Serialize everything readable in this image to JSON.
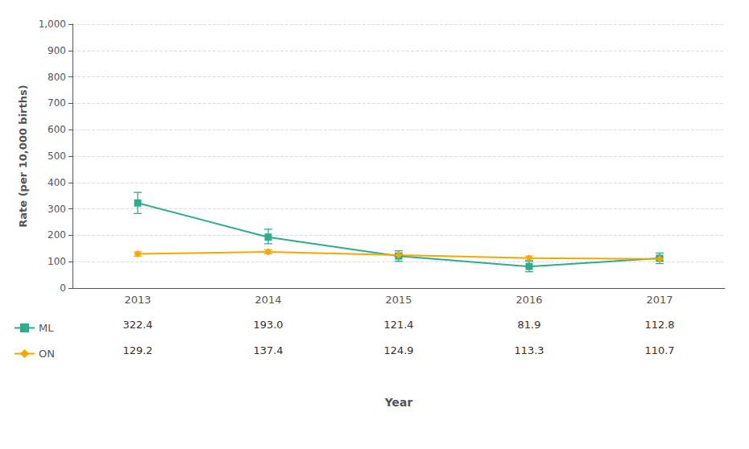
{
  "chart_data": {
    "type": "line",
    "categories": [
      "2013",
      "2014",
      "2015",
      "2016",
      "2017"
    ],
    "xlabel": "Year",
    "ylabel": "Rate (per 10,000 births)",
    "series": [
      {
        "name": "ML",
        "color": "#2EAD8C",
        "marker": "square",
        "values": [
          322.4,
          193.0,
          121.4,
          81.9,
          112.8
        ],
        "value_labels": [
          "322.4",
          "193.0",
          "121.4",
          "81.9",
          "112.8"
        ],
        "yerr_lower": [
          40,
          25,
          20,
          20,
          20
        ],
        "yerr_upper": [
          40,
          30,
          20,
          20,
          20
        ]
      },
      {
        "name": "ON",
        "color": "#F5A800",
        "marker": "diamond",
        "values": [
          129.2,
          137.4,
          124.9,
          113.3,
          110.7
        ],
        "value_labels": [
          "129.2",
          "137.4",
          "124.9",
          "113.3",
          "110.7"
        ],
        "yerr_lower": [
          8,
          8,
          8,
          8,
          8
        ],
        "yerr_upper": [
          8,
          8,
          8,
          8,
          8
        ]
      }
    ],
    "ylim": [
      0,
      1000
    ],
    "yticks": [
      0,
      100,
      200,
      300,
      400,
      500,
      600,
      700,
      800,
      900,
      {
        "value": 1000,
        "label": "1,000"
      }
    ],
    "grid": true
  }
}
